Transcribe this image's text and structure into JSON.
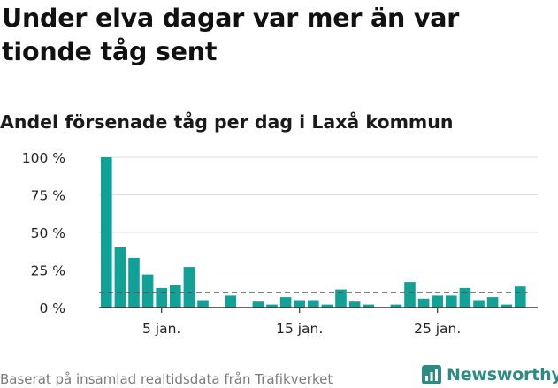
{
  "title": "Under elva dagar var mer än var tionde tåg sent",
  "subtitle": "Andel försenade tåg per dag i Laxå kommun",
  "source": "Baserat på insamlad realtidsdata från Trafikverket",
  "brand": {
    "name": "Newsworthy",
    "icon": "newsworthy-logo-icon",
    "color": "#2e8b84"
  },
  "colors": {
    "bar": "#12a197",
    "reference_line": "#555555",
    "grid": "#dddddd",
    "axis": "#333333"
  },
  "chart_data": {
    "type": "bar",
    "title": "Andel försenade tåg per dag i Laxå kommun",
    "xlabel": "",
    "ylabel": "",
    "unit": "%",
    "x": [
      1,
      2,
      3,
      4,
      5,
      6,
      7,
      8,
      9,
      10,
      11,
      12,
      13,
      14,
      15,
      16,
      17,
      18,
      19,
      20,
      21,
      22,
      23,
      24,
      25,
      26,
      27,
      28,
      29,
      30,
      31
    ],
    "values": [
      100,
      40,
      33,
      22,
      13,
      15,
      27,
      5,
      null,
      8,
      null,
      4,
      2,
      7,
      5,
      5,
      2,
      12,
      4,
      2,
      null,
      2,
      17,
      6,
      8,
      8,
      13,
      5,
      7,
      2,
      14
    ],
    "reference_line": {
      "value": 10,
      "style": "dashed"
    },
    "ylim": [
      0,
      100
    ],
    "yticks": [
      {
        "value": 0,
        "label": "0 %"
      },
      {
        "value": 25,
        "label": "25 %"
      },
      {
        "value": 50,
        "label": "50 %"
      },
      {
        "value": 75,
        "label": "75 %"
      },
      {
        "value": 100,
        "label": "100 %"
      }
    ],
    "xticks": [
      {
        "value": 5,
        "label": "5 jan."
      },
      {
        "value": 15,
        "label": "15 jan."
      },
      {
        "value": 25,
        "label": "25 jan."
      }
    ],
    "grid": true
  }
}
